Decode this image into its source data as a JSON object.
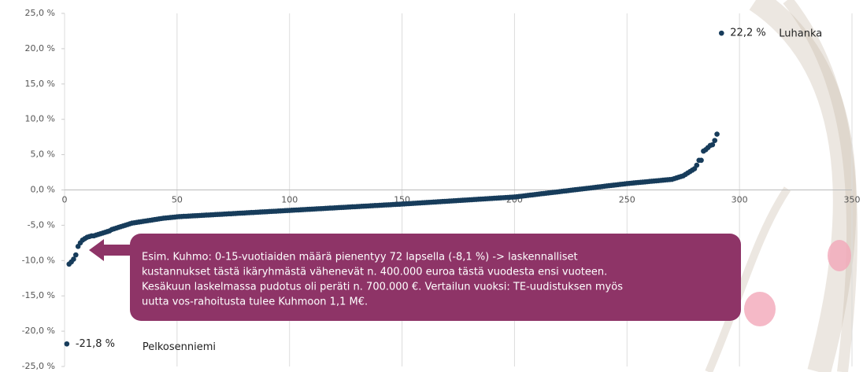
{
  "chart_data": {
    "type": "scatter",
    "color": "#173c5b",
    "xlim": [
      0,
      350
    ],
    "xticks": [
      0,
      50,
      100,
      150,
      200,
      250,
      300,
      350
    ],
    "ylim": [
      -25,
      25
    ],
    "yticks": [
      {
        "value": 25,
        "label": "25,0 %"
      },
      {
        "value": 20,
        "label": "20,0 %"
      },
      {
        "value": 15,
        "label": "15,0 %"
      },
      {
        "value": 10,
        "label": "10,0 %"
      },
      {
        "value": 5,
        "label": "5,0 %"
      },
      {
        "value": 0,
        "label": "0,0 %"
      },
      {
        "value": -5,
        "label": "-5,0 %"
      },
      {
        "value": -10,
        "label": "-10,0 %"
      },
      {
        "value": -15,
        "label": "-15,0 %"
      },
      {
        "value": -20,
        "label": "-20,0 %"
      },
      {
        "value": -25,
        "label": "-25,0 %"
      }
    ],
    "xgrid": true,
    "x": [
      2,
      3,
      4,
      5,
      6,
      7,
      8,
      9,
      10,
      11,
      12,
      13,
      14,
      15,
      16,
      17,
      18,
      19,
      20,
      21,
      22,
      23,
      24,
      25,
      26,
      27,
      28,
      29,
      30,
      31,
      32,
      33,
      34,
      35,
      36,
      37,
      38,
      39,
      40,
      41,
      42,
      43,
      44,
      45,
      46,
      47,
      48,
      49,
      50,
      51,
      52,
      53,
      54,
      55,
      56,
      57,
      58,
      59,
      60,
      61,
      62,
      63,
      64,
      65,
      66,
      67,
      68,
      69,
      70,
      71,
      72,
      73,
      74,
      75,
      76,
      77,
      78,
      79,
      80,
      81,
      82,
      83,
      84,
      85,
      86,
      87,
      88,
      89,
      90,
      91,
      92,
      93,
      94,
      95,
      96,
      97,
      98,
      99,
      100,
      101,
      102,
      103,
      104,
      105,
      106,
      107,
      108,
      109,
      110,
      111,
      112,
      113,
      114,
      115,
      116,
      117,
      118,
      119,
      120,
      121,
      122,
      123,
      124,
      125,
      126,
      127,
      128,
      129,
      130,
      131,
      132,
      133,
      134,
      135,
      136,
      137,
      138,
      139,
      140,
      141,
      142,
      143,
      144,
      145,
      146,
      147,
      148,
      149,
      150,
      151,
      152,
      153,
      154,
      155,
      156,
      157,
      158,
      159,
      160,
      161,
      162,
      163,
      164,
      165,
      166,
      167,
      168,
      169,
      170,
      171,
      172,
      173,
      174,
      175,
      176,
      177,
      178,
      179,
      180,
      181,
      182,
      183,
      184,
      185,
      186,
      187,
      188,
      189,
      190,
      191,
      192,
      193,
      194,
      195,
      196,
      197,
      198,
      199,
      200,
      201,
      202,
      203,
      204,
      205,
      206,
      207,
      208,
      209,
      210,
      211,
      212,
      213,
      214,
      215,
      216,
      217,
      218,
      219,
      220,
      221,
      222,
      223,
      224,
      225,
      226,
      227,
      228,
      229,
      230,
      231,
      232,
      233,
      234,
      235,
      236,
      237,
      238,
      239,
      240,
      241,
      242,
      243,
      244,
      245,
      246,
      247,
      248,
      249,
      250,
      251,
      252,
      253,
      254,
      255,
      256,
      257,
      258,
      259,
      260,
      261,
      262,
      263,
      264,
      265,
      266,
      267,
      268,
      269,
      270,
      271,
      272,
      273,
      274,
      275,
      276,
      277,
      278,
      279,
      280,
      281,
      282,
      283,
      284,
      285,
      286,
      287,
      288,
      289,
      290
    ],
    "values": [
      -10.5,
      -10.2,
      -9.8,
      -9.2,
      -8.0,
      -7.5,
      -7.1,
      -6.9,
      -6.7,
      -6.6,
      -6.5,
      -6.5,
      -6.4,
      -6.3,
      -6.2,
      -6.1,
      -6.0,
      -5.9,
      -5.8,
      -5.6,
      -5.5,
      -5.4,
      -5.3,
      -5.2,
      -5.1,
      -5.0,
      -4.9,
      -4.8,
      -4.7,
      -4.65,
      -4.6,
      -4.55,
      -4.5,
      -4.45,
      -4.4,
      -4.35,
      -4.3,
      -4.25,
      -4.2,
      -4.15,
      -4.1,
      -4.05,
      -4.0,
      -3.97,
      -3.94,
      -3.91,
      -3.88,
      -3.85,
      -3.8,
      -3.78,
      -3.76,
      -3.74,
      -3.73,
      -3.71,
      -3.69,
      -3.67,
      -3.65,
      -3.64,
      -3.62,
      -3.6,
      -3.58,
      -3.56,
      -3.55,
      -3.53,
      -3.51,
      -3.49,
      -3.47,
      -3.46,
      -3.44,
      -3.42,
      -3.4,
      -3.38,
      -3.37,
      -3.35,
      -3.33,
      -3.31,
      -3.29,
      -3.28,
      -3.26,
      -3.24,
      -3.22,
      -3.2,
      -3.19,
      -3.17,
      -3.15,
      -3.13,
      -3.11,
      -3.1,
      -3.08,
      -3.06,
      -3.04,
      -3.02,
      -3.01,
      -2.99,
      -2.97,
      -2.95,
      -2.93,
      -2.92,
      -2.9,
      -2.88,
      -2.86,
      -2.84,
      -2.83,
      -2.81,
      -2.79,
      -2.77,
      -2.75,
      -2.74,
      -2.72,
      -2.7,
      -2.68,
      -2.66,
      -2.65,
      -2.63,
      -2.61,
      -2.59,
      -2.57,
      -2.56,
      -2.54,
      -2.52,
      -2.5,
      -2.48,
      -2.47,
      -2.45,
      -2.43,
      -2.41,
      -2.39,
      -2.38,
      -2.36,
      -2.34,
      -2.32,
      -2.3,
      -2.29,
      -2.27,
      -2.25,
      -2.23,
      -2.21,
      -2.2,
      -2.18,
      -2.16,
      -2.14,
      -2.12,
      -2.11,
      -2.09,
      -2.07,
      -2.05,
      -2.03,
      -2.02,
      -2.0,
      -1.98,
      -1.96,
      -1.94,
      -1.92,
      -1.9,
      -1.88,
      -1.86,
      -1.84,
      -1.82,
      -1.8,
      -1.78,
      -1.76,
      -1.74,
      -1.72,
      -1.7,
      -1.68,
      -1.66,
      -1.64,
      -1.62,
      -1.6,
      -1.58,
      -1.56,
      -1.54,
      -1.52,
      -1.5,
      -1.48,
      -1.46,
      -1.44,
      -1.42,
      -1.4,
      -1.38,
      -1.36,
      -1.34,
      -1.32,
      -1.3,
      -1.28,
      -1.26,
      -1.24,
      -1.22,
      -1.2,
      -1.18,
      -1.16,
      -1.14,
      -1.12,
      -1.1,
      -1.08,
      -1.06,
      -1.04,
      -1.02,
      -1.0,
      -0.96,
      -0.92,
      -0.89,
      -0.85,
      -0.81,
      -0.77,
      -0.73,
      -0.7,
      -0.66,
      -0.62,
      -0.58,
      -0.54,
      -0.51,
      -0.47,
      -0.43,
      -0.39,
      -0.35,
      -0.32,
      -0.28,
      -0.24,
      -0.2,
      -0.16,
      -0.13,
      -0.09,
      -0.05,
      -0.01,
      0.03,
      0.06,
      0.1,
      0.14,
      0.18,
      0.22,
      0.25,
      0.29,
      0.33,
      0.37,
      0.41,
      0.44,
      0.48,
      0.52,
      0.56,
      0.6,
      0.63,
      0.67,
      0.71,
      0.75,
      0.79,
      0.82,
      0.86,
      0.9,
      0.93,
      0.96,
      0.99,
      1.02,
      1.05,
      1.08,
      1.11,
      1.14,
      1.17,
      1.2,
      1.23,
      1.26,
      1.29,
      1.32,
      1.35,
      1.38,
      1.41,
      1.44,
      1.47,
      1.5,
      1.6,
      1.7,
      1.8,
      1.9,
      2.0,
      2.2,
      2.4,
      2.6,
      2.8,
      3.0,
      3.5,
      4.2,
      4.2,
      5.5,
      5.7,
      6.0,
      6.3,
      6.4,
      7.0,
      7.9
    ],
    "labeled_points": [
      {
        "x": 292,
        "y": 22.2,
        "value_label": "22,2 %",
        "label": "Luhanka"
      },
      {
        "x": 1,
        "y": -21.8,
        "value_label": "-21,8 %",
        "label": "Pelkosenniemi"
      }
    ],
    "annotation": {
      "color": "#8e3467",
      "lines": [
        "Esim. Kuhmo: 0-15-vuotiaiden määrä pienentyy 72 lapsella (-8,1 %) -> laskennalliset",
        "kustannukset tästä ikäryhmästä vähenevät n. 400.000 euroa tästä vuodesta ensi vuoteen.",
        "Kesäkuun laskelmassa pudotus oli peräti n. 700.000 €. Vertailun vuoksi: TE-uudistuksen myös",
        "uutta vos-rahoitusta tulee Kuhmoon 1,1 M€."
      ]
    }
  }
}
